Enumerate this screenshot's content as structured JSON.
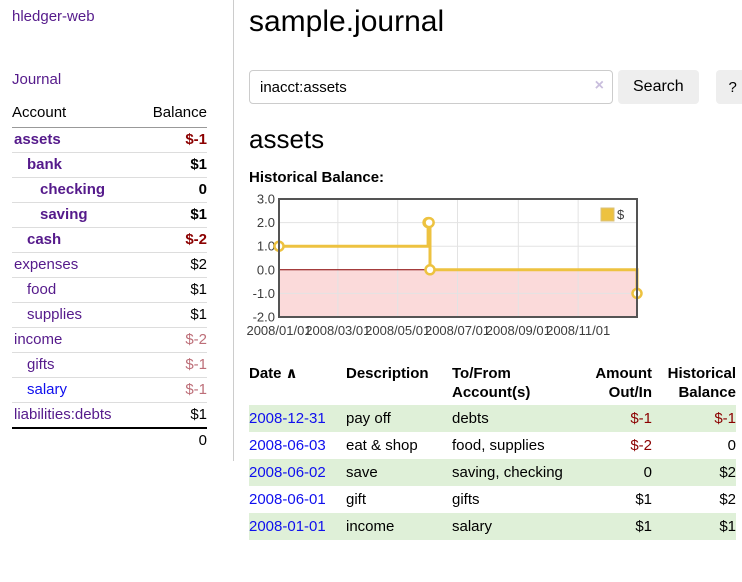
{
  "app": {
    "brand": "hledger-web"
  },
  "sidebar": {
    "journal_label": "Journal",
    "accounts_table": {
      "headers": {
        "account": "Account",
        "balance": "Balance"
      },
      "rows": [
        {
          "name": "assets",
          "indent": 0,
          "bold": true,
          "link_color": "purple",
          "balance": "$-1",
          "balance_style": "neg-strong"
        },
        {
          "name": "bank",
          "indent": 1,
          "bold": true,
          "link_color": "purple",
          "balance": "$1",
          "balance_style": "pos"
        },
        {
          "name": "checking",
          "indent": 2,
          "bold": true,
          "link_color": "purple",
          "balance": "0",
          "balance_style": "pos"
        },
        {
          "name": "saving",
          "indent": 2,
          "bold": true,
          "link_color": "purple",
          "balance": "$1",
          "balance_style": "pos"
        },
        {
          "name": "cash",
          "indent": 1,
          "bold": true,
          "link_color": "purple",
          "balance": "$-2",
          "balance_style": "neg-strong"
        },
        {
          "name": "expenses",
          "indent": 0,
          "bold": false,
          "link_color": "purple",
          "balance": "$2",
          "balance_style": "pos"
        },
        {
          "name": "food",
          "indent": 1,
          "bold": false,
          "link_color": "purple",
          "balance": "$1",
          "balance_style": "pos"
        },
        {
          "name": "supplies",
          "indent": 1,
          "bold": false,
          "link_color": "purple",
          "balance": "$1",
          "balance_style": "pos"
        },
        {
          "name": "income",
          "indent": 0,
          "bold": false,
          "link_color": "purple",
          "balance": "$-2",
          "balance_style": "neg-soft"
        },
        {
          "name": "gifts",
          "indent": 1,
          "bold": false,
          "link_color": "purple",
          "balance": "$-1",
          "balance_style": "neg-soft"
        },
        {
          "name": "salary",
          "indent": 1,
          "bold": false,
          "link_color": "blue",
          "balance": "$-1",
          "balance_style": "neg-soft"
        },
        {
          "name": "liabilities:debts",
          "indent": 0,
          "bold": false,
          "link_color": "purple",
          "balance": "$1",
          "balance_style": "pos"
        }
      ],
      "total": "0"
    }
  },
  "main": {
    "title": "sample.journal",
    "search": {
      "value": "inacct:assets",
      "clear_icon": "×",
      "search_button": "Search",
      "help_button": "?"
    },
    "account_heading": "assets",
    "chart_label": "Historical Balance:"
  },
  "chart_data": {
    "type": "line",
    "step": true,
    "title": "Historical Balance",
    "series": [
      {
        "name": "$",
        "color": "#EDC240",
        "points": [
          [
            "2008-01-01",
            1
          ],
          [
            "2008-06-01",
            2
          ],
          [
            "2008-06-02",
            2
          ],
          [
            "2008-06-03",
            0
          ],
          [
            "2008-12-31",
            -1
          ]
        ]
      }
    ],
    "x_range": [
      "2008-01-01",
      "2008-12-31"
    ],
    "ylim": [
      -2,
      3
    ],
    "y_ticks": [
      "3.0",
      "2.0",
      "1.0",
      "0.0",
      "-1.0",
      "-2.0"
    ],
    "x_ticks": [
      "2008/01/01",
      "2008/03/01",
      "2008/05/01",
      "2008/07/01",
      "2008/09/01",
      "2008/11/01"
    ],
    "grid": true,
    "zero_line_color": "#8b0000",
    "negative_region_color": "#fbdada",
    "border_color": "#545454",
    "grid_color": "#e3e3e3",
    "legend": {
      "label": "$",
      "position": "top-right"
    }
  },
  "transactions": {
    "headers": {
      "date": "Date",
      "sort_icon": "∧",
      "description": "Description",
      "accounts": "To/From Account(s)",
      "amount": "Amount Out/In",
      "balance": "Historical Balance"
    },
    "rows": [
      {
        "date": "2008-12-31",
        "description": "pay off",
        "accounts": "debts",
        "amount": "$-1",
        "amount_neg": true,
        "balance": "$-1",
        "balance_neg": true,
        "shaded": true
      },
      {
        "date": "2008-06-03",
        "description": "eat & shop",
        "accounts": "food, supplies",
        "amount": "$-2",
        "amount_neg": true,
        "balance": "0",
        "balance_neg": false,
        "shaded": false
      },
      {
        "date": "2008-06-02",
        "description": "save",
        "accounts": "saving, checking",
        "amount": "0",
        "amount_neg": false,
        "balance": "$2",
        "balance_neg": false,
        "shaded": true
      },
      {
        "date": "2008-06-01",
        "description": "gift",
        "accounts": "gifts",
        "amount": "$1",
        "amount_neg": false,
        "balance": "$2",
        "balance_neg": false,
        "shaded": false
      },
      {
        "date": "2008-01-01",
        "description": "income",
        "accounts": "salary",
        "amount": "$1",
        "amount_neg": false,
        "balance": "$1",
        "balance_neg": false,
        "shaded": true
      }
    ]
  }
}
